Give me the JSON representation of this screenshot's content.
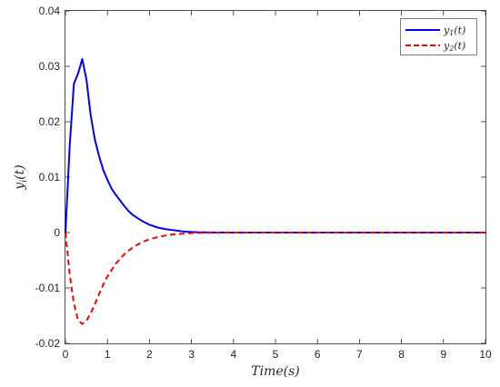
{
  "chart_data": {
    "type": "line",
    "xlabel": "Time(s)",
    "ylabel": "y_i(t)",
    "ylabel_display": "yi(t)",
    "xlim": [
      0,
      10
    ],
    "ylim": [
      -0.02,
      0.04
    ],
    "xticks": [
      0,
      1,
      2,
      3,
      4,
      5,
      6,
      7,
      8,
      9,
      10
    ],
    "xtick_labels": [
      "0",
      "1",
      "2",
      "3",
      "4",
      "5",
      "6",
      "7",
      "8",
      "9",
      "10"
    ],
    "yticks": [
      -0.02,
      -0.01,
      0,
      0.01,
      0.02,
      0.03,
      0.04
    ],
    "ytick_labels": [
      "-0.02",
      "-0.01",
      "0",
      "0.01",
      "0.02",
      "0.03",
      "0.04"
    ],
    "grid": false,
    "legend_position": "top-right",
    "series": [
      {
        "name": "y1(t)",
        "color": "#0000ff",
        "style": "solid",
        "x": [
          0,
          0.1,
          0.2,
          0.3,
          0.4,
          0.5,
          0.6,
          0.7,
          0.8,
          0.9,
          1.0,
          1.1,
          1.2,
          1.3,
          1.4,
          1.5,
          1.6,
          1.7,
          1.8,
          1.9,
          2.0,
          2.2,
          2.4,
          2.6,
          2.8,
          3.0,
          3.2,
          3.5,
          4.0,
          5.0,
          6.0,
          7.0,
          8.0,
          9.0,
          10.0
        ],
        "y": [
          0,
          0.0155,
          0.0268,
          0.0287,
          0.0313,
          0.0276,
          0.0212,
          0.0168,
          0.0138,
          0.0113,
          0.0095,
          0.0079,
          0.0068,
          0.0058,
          0.0048,
          0.0039,
          0.0032,
          0.0027,
          0.0022,
          0.0018,
          0.0014,
          0.0009,
          0.0006,
          0.0004,
          0.0002,
          0.0001,
          5e-05,
          2e-05,
          0,
          0,
          0,
          0,
          0,
          0,
          0
        ]
      },
      {
        "name": "y2(t)",
        "color": "#ff0000",
        "style": "dashed",
        "x": [
          0,
          0.1,
          0.2,
          0.3,
          0.4,
          0.5,
          0.6,
          0.7,
          0.8,
          0.9,
          1.0,
          1.2,
          1.4,
          1.6,
          1.8,
          2.0,
          2.2,
          2.4,
          2.6,
          2.8,
          3.0,
          3.2,
          3.5,
          4.0,
          5.0,
          6.0,
          7.0,
          8.0,
          9.0,
          10.0
        ],
        "y": [
          0,
          -0.0075,
          -0.0128,
          -0.0158,
          -0.0165,
          -0.0159,
          -0.0146,
          -0.0129,
          -0.0111,
          -0.0094,
          -0.0079,
          -0.0056,
          -0.0039,
          -0.0027,
          -0.0018,
          -0.0012,
          -0.0008,
          -0.0005,
          -0.0003,
          -0.0002,
          -0.0001,
          -5e-05,
          -2e-05,
          0,
          0,
          0,
          0,
          0,
          0,
          0
        ]
      }
    ]
  }
}
